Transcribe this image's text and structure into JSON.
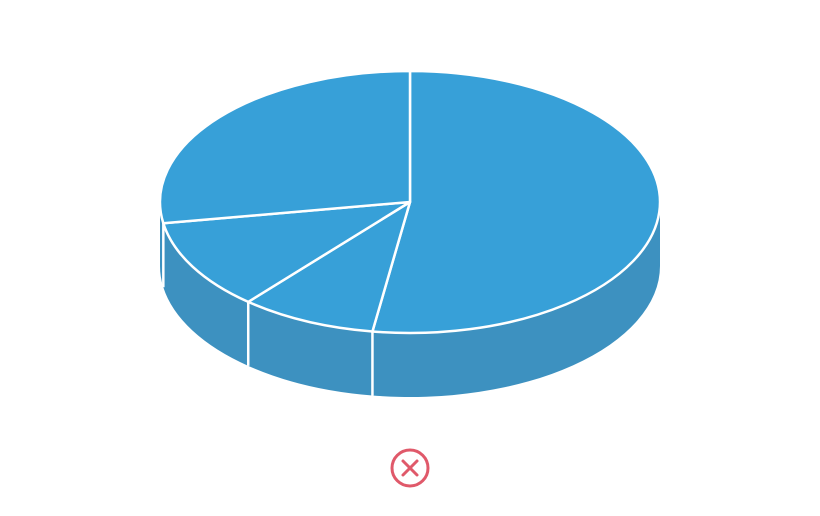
{
  "chart_data": {
    "type": "pie",
    "title": "",
    "style": "3d",
    "legend": "none",
    "values": [
      52.4,
      8.8,
      11.2,
      27.6
    ],
    "colors": {
      "top": "#37a0d8",
      "side": "#3d91c0",
      "separator": "#ffffff"
    }
  },
  "close_button": {
    "icon": "close-circle-icon",
    "color": "#e0596a"
  }
}
